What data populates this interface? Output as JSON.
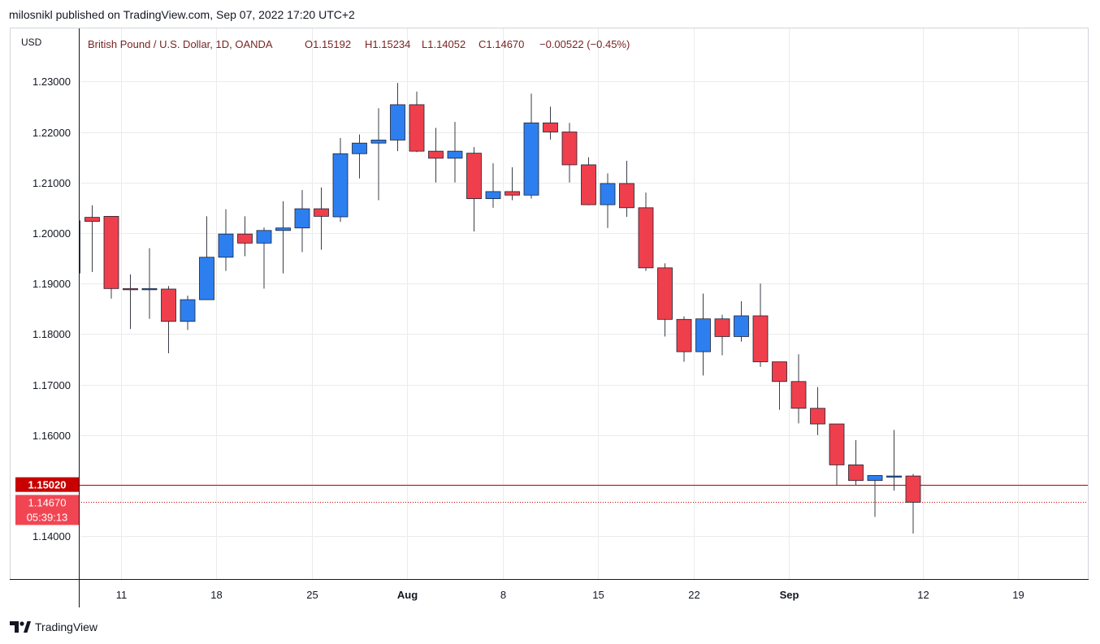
{
  "header": {
    "published_text": "milosnikl published on TradingView.com, Sep 07, 2022 17:20 UTC+2"
  },
  "footer": {
    "logo_text": "TradingView",
    "logo_icon": "tradingview-logo-icon"
  },
  "colors": {
    "up": "#2d7ff0",
    "down": "#ef3f4c",
    "wick": "#3a3e46",
    "grid": "#ebebeb",
    "price_line": "#c80000",
    "price_label_dark": "#c80000",
    "price_label_current": "#f24553",
    "legend_text": "#7a2323"
  },
  "chart_data": {
    "type": "candlestick",
    "currency": "USD",
    "legend": {
      "symbol": "British Pound / U.S. Dollar, 1D, OANDA",
      "open": "O1.15192",
      "high": "H1.15234",
      "low": "L1.14052",
      "close": "C1.14670",
      "change": "−0.00522 (−0.45%)"
    },
    "ylim": [
      1.1315,
      1.2405
    ],
    "y_ticks": [
      "1.14000",
      "1.15000",
      "1.16000",
      "1.17000",
      "1.18000",
      "1.19000",
      "1.20000",
      "1.21000",
      "1.22000",
      "1.23000"
    ],
    "y_tick_values": [
      1.14,
      1.15,
      1.16,
      1.17,
      1.18,
      1.19,
      1.2,
      1.21,
      1.22,
      1.23
    ],
    "x_ticks": [
      {
        "label": "11",
        "index": 1.5,
        "bold": false
      },
      {
        "label": "18",
        "index": 6.5,
        "bold": false
      },
      {
        "label": "25",
        "index": 11.5,
        "bold": false
      },
      {
        "label": "Aug",
        "index": 16.5,
        "bold": true
      },
      {
        "label": "8",
        "index": 21.5,
        "bold": false
      },
      {
        "label": "15",
        "index": 26.5,
        "bold": false
      },
      {
        "label": "22",
        "index": 31.5,
        "bold": false
      },
      {
        "label": "Sep",
        "index": 36.5,
        "bold": true
      },
      {
        "label": "12",
        "index": 43.5,
        "bold": false
      },
      {
        "label": "19",
        "index": 48.5,
        "bold": false
      }
    ],
    "price_labels": [
      {
        "text": "1.15020",
        "value": 1.1502,
        "kind": "line"
      },
      {
        "text": "1.14670",
        "value": 1.1467,
        "kind": "current",
        "countdown": "05:39:13"
      }
    ],
    "candles": [
      {
        "o": 1.2031,
        "h": 1.2055,
        "l": 1.1923,
        "c": 1.2023
      },
      {
        "o": 1.2033,
        "h": 1.2033,
        "l": 1.187,
        "c": 1.189
      },
      {
        "o": 1.189,
        "h": 1.1918,
        "l": 1.181,
        "c": 1.1888
      },
      {
        "o": 1.1889,
        "h": 1.197,
        "l": 1.183,
        "c": 1.189
      },
      {
        "o": 1.1889,
        "h": 1.1895,
        "l": 1.1762,
        "c": 1.1825
      },
      {
        "o": 1.1825,
        "h": 1.1876,
        "l": 1.1808,
        "c": 1.1868
      },
      {
        "o": 1.1868,
        "h": 1.2033,
        "l": 1.1868,
        "c": 1.1952
      },
      {
        "o": 1.1952,
        "h": 1.2047,
        "l": 1.1925,
        "c": 1.1998
      },
      {
        "o": 1.1998,
        "h": 1.2033,
        "l": 1.1954,
        "c": 1.198
      },
      {
        "o": 1.198,
        "h": 1.2011,
        "l": 1.189,
        "c": 1.2005
      },
      {
        "o": 1.2005,
        "h": 1.2063,
        "l": 1.192,
        "c": 1.201
      },
      {
        "o": 1.201,
        "h": 1.2085,
        "l": 1.1962,
        "c": 1.2048
      },
      {
        "o": 1.2048,
        "h": 1.209,
        "l": 1.1967,
        "c": 1.2033
      },
      {
        "o": 1.2032,
        "h": 1.2188,
        "l": 1.2022,
        "c": 1.2157
      },
      {
        "o": 1.2157,
        "h": 1.2195,
        "l": 1.2108,
        "c": 1.2178
      },
      {
        "o": 1.2178,
        "h": 1.2247,
        "l": 1.2065,
        "c": 1.2184
      },
      {
        "o": 1.2184,
        "h": 1.2297,
        "l": 1.2162,
        "c": 1.2254
      },
      {
        "o": 1.2254,
        "h": 1.228,
        "l": 1.216,
        "c": 1.2162
      },
      {
        "o": 1.2162,
        "h": 1.2208,
        "l": 1.21,
        "c": 1.2148
      },
      {
        "o": 1.2148,
        "h": 1.222,
        "l": 1.21,
        "c": 1.2162
      },
      {
        "o": 1.2158,
        "h": 1.217,
        "l": 1.2003,
        "c": 1.2068
      },
      {
        "o": 1.2068,
        "h": 1.2138,
        "l": 1.205,
        "c": 1.2082
      },
      {
        "o": 1.2082,
        "h": 1.213,
        "l": 1.2065,
        "c": 1.2075
      },
      {
        "o": 1.2075,
        "h": 1.2276,
        "l": 1.2068,
        "c": 1.2218
      },
      {
        "o": 1.2218,
        "h": 1.225,
        "l": 1.2185,
        "c": 1.22
      },
      {
        "o": 1.22,
        "h": 1.2218,
        "l": 1.21,
        "c": 1.2135
      },
      {
        "o": 1.2135,
        "h": 1.215,
        "l": 1.2055,
        "c": 1.2056
      },
      {
        "o": 1.2056,
        "h": 1.2118,
        "l": 1.201,
        "c": 1.2098
      },
      {
        "o": 1.2098,
        "h": 1.2143,
        "l": 1.2032,
        "c": 1.205
      },
      {
        "o": 1.205,
        "h": 1.208,
        "l": 1.1925,
        "c": 1.1931
      },
      {
        "o": 1.1931,
        "h": 1.194,
        "l": 1.1795,
        "c": 1.1829
      },
      {
        "o": 1.1829,
        "h": 1.1835,
        "l": 1.1745,
        "c": 1.1765
      },
      {
        "o": 1.1765,
        "h": 1.188,
        "l": 1.1718,
        "c": 1.183
      },
      {
        "o": 1.183,
        "h": 1.1838,
        "l": 1.1758,
        "c": 1.1795
      },
      {
        "o": 1.1795,
        "h": 1.1865,
        "l": 1.1785,
        "c": 1.1836
      },
      {
        "o": 1.1836,
        "h": 1.19,
        "l": 1.1735,
        "c": 1.1745
      },
      {
        "o": 1.1745,
        "h": 1.1745,
        "l": 1.165,
        "c": 1.1706
      },
      {
        "o": 1.1706,
        "h": 1.176,
        "l": 1.1623,
        "c": 1.1653
      },
      {
        "o": 1.1653,
        "h": 1.1695,
        "l": 1.16,
        "c": 1.1622
      },
      {
        "o": 1.1622,
        "h": 1.1622,
        "l": 1.15,
        "c": 1.1541
      },
      {
        "o": 1.1541,
        "h": 1.159,
        "l": 1.15,
        "c": 1.151
      },
      {
        "o": 1.151,
        "h": 1.152,
        "l": 1.1438,
        "c": 1.152
      },
      {
        "o": 1.1519,
        "h": 1.161,
        "l": 1.149,
        "c": 1.1519
      },
      {
        "o": 1.1519,
        "h": 1.1523,
        "l": 1.1405,
        "c": 1.1467
      }
    ]
  }
}
